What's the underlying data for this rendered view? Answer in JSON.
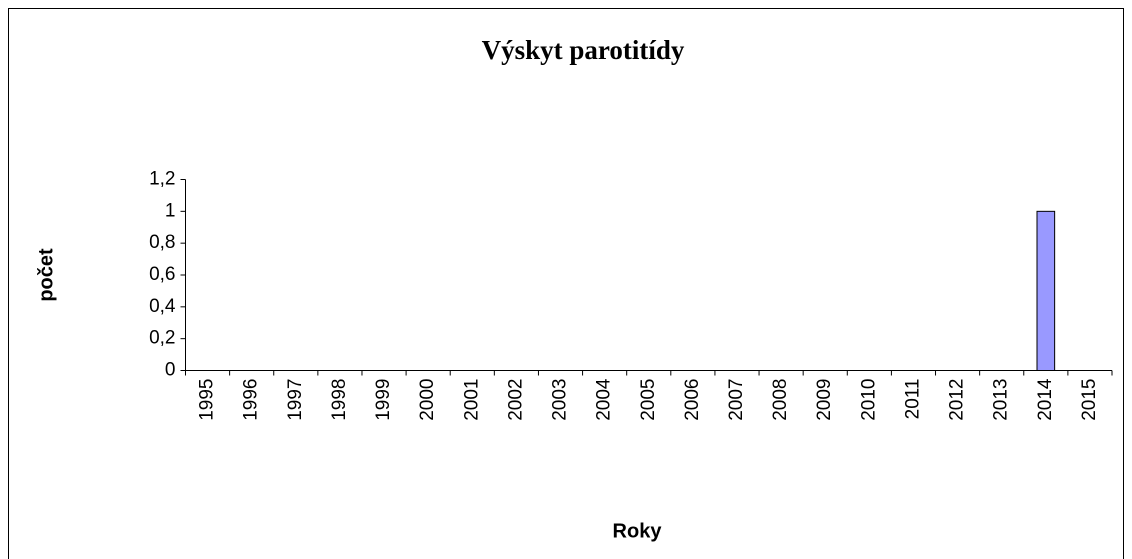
{
  "chart_data": {
    "type": "bar",
    "title": "Výskyt parotitídy",
    "x_label": "Roky",
    "y_label": "počet",
    "categories": [
      "1995",
      "1996",
      "1997",
      "1998",
      "1999",
      "2000",
      "2001",
      "2002",
      "2003",
      "2004",
      "2005",
      "2006",
      "2007",
      "2008",
      "2009",
      "2010",
      "2011",
      "2012",
      "2013",
      "2014",
      "2015"
    ],
    "values": [
      0,
      0,
      0,
      0,
      0,
      0,
      0,
      0,
      0,
      0,
      0,
      0,
      0,
      0,
      0,
      0,
      0,
      0,
      0,
      1,
      0
    ],
    "color": "#9999ff",
    "ylim": [
      0,
      1.2
    ],
    "yticks": [
      0,
      {
        "value": 0.2,
        "label": "0,2"
      },
      {
        "value": 0.4,
        "label": "0,4"
      },
      {
        "value": 0.6,
        "label": "0,6"
      },
      {
        "value": 0.8,
        "label": "0,8"
      },
      1,
      {
        "value": 1.2,
        "label": "1,2"
      }
    ],
    "grid": false
  }
}
